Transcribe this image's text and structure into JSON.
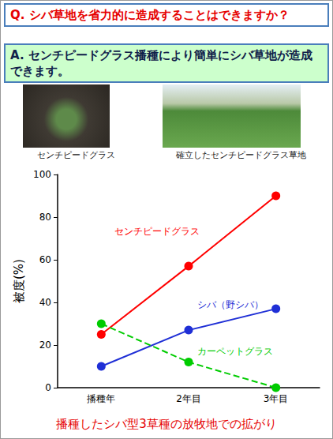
{
  "question": "Q. シバ草地を省力的に造成することはできますか？",
  "answer": "A. センチピードグラス播種により簡単にシバ草地が造成できます。",
  "photos": [
    {
      "caption": "センチピードグラス"
    },
    {
      "caption": "確立したセンチピードグラス草地"
    }
  ],
  "chart_data": {
    "type": "line",
    "title": "播種したシバ型3草種の放牧地での拡がり",
    "ylabel": "被度(%)",
    "categories": [
      "播種年",
      "2年目",
      "3年目"
    ],
    "series": [
      {
        "name": "センチピードグラス",
        "color": "#ff0000",
        "values": [
          25,
          57,
          90
        ],
        "line_style": "solid"
      },
      {
        "name": "シバ（野シバ）",
        "color": "#1f2fd6",
        "values": [
          10,
          27,
          37
        ],
        "line_style": "solid"
      },
      {
        "name": "カーペットグラス",
        "color": "#00cc00",
        "values": [
          30,
          12,
          0
        ],
        "line_style": "dashed"
      }
    ],
    "ylim": [
      0,
      100
    ],
    "yticks": [
      0,
      20,
      40,
      60,
      80,
      100
    ],
    "grid": false,
    "marker": "circle"
  }
}
